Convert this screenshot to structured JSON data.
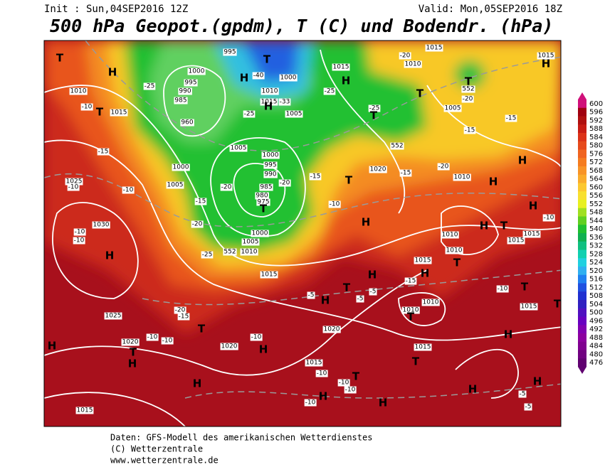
{
  "header": {
    "init": "Init : Sun,04SEP2016 12Z",
    "valid": "Valid: Mon,05SEP2016 18Z",
    "title": "500 hPa Geopot.(gpdm), T (C) und Bodendr. (hPa)"
  },
  "footer": {
    "line1": "Daten: GFS-Modell des amerikanischen Wetterdienstes",
    "line2": "(C) Wetterzentrale",
    "line3": "www.wetterzentrale.de"
  },
  "colorbar": {
    "levels": [
      600,
      596,
      592,
      588,
      584,
      580,
      576,
      572,
      568,
      564,
      560,
      556,
      552,
      548,
      544,
      540,
      536,
      532,
      528,
      524,
      520,
      516,
      512,
      508,
      504,
      500,
      496,
      492,
      488,
      484,
      480,
      476
    ],
    "colors": [
      "#d0107a",
      "#a00010",
      "#b01010",
      "#c81c14",
      "#dc3218",
      "#e64a1c",
      "#f06420",
      "#f57c20",
      "#f89428",
      "#faac2c",
      "#fcc830",
      "#f8e030",
      "#e8f020",
      "#a0e020",
      "#60d020",
      "#20c030",
      "#10b050",
      "#10c080",
      "#10d0b0",
      "#20d0e0",
      "#30b0f0",
      "#2080f0",
      "#2050e0",
      "#2030d0",
      "#3020c0",
      "#5010c0",
      "#6800c0",
      "#8000b0",
      "#8c00a0",
      "#800090",
      "#700080",
      "#600070"
    ]
  },
  "map": {
    "labels": [
      "T",
      "H",
      "1010",
      "-10",
      "T",
      "1015",
      "-25",
      "1000",
      "995",
      "990",
      "985",
      "960",
      "995",
      "T",
      "-40",
      "H",
      "1000",
      "1010",
      "1015",
      "-33",
      "H",
      "-25",
      "1005",
      "1015",
      "H",
      "-25",
      "-25",
      "T",
      "-20",
      "1015",
      "1010",
      "T",
      "552",
      "T",
      "-20",
      "1005",
      "-15",
      "-15",
      "1015",
      "H",
      "-15",
      "1005",
      "1000",
      "995",
      "990",
      "985",
      "980",
      "975",
      "T",
      "-20",
      "-20",
      "1000",
      "1005",
      "1025",
      "-10",
      "-10",
      "1030",
      "-10",
      "-10",
      "H",
      "-15",
      "-20",
      "-25",
      "552",
      "1010",
      "1005",
      "1000",
      "1015",
      "-15",
      "T",
      "-10",
      "1020",
      "-15",
      "-20",
      "1010",
      "H",
      "H",
      "H",
      "H",
      "1010",
      "1010",
      "H",
      "T",
      "1015",
      "1015",
      "-10",
      "1015",
      "H",
      "T",
      "-15",
      "H",
      "T",
      "-5",
      "H",
      "-5",
      "-5",
      "1010",
      "1010",
      "T",
      "-10",
      "T",
      "1015",
      "T",
      "-20",
      "-15",
      "1025",
      "T",
      "-10",
      "-10",
      "1020",
      "T",
      "H",
      "H",
      "1020",
      "-10",
      "H",
      "1020",
      "1015",
      "H",
      "T",
      "1015",
      "-10",
      "T",
      "H",
      "-10",
      "-10",
      "H",
      "-10",
      "H",
      "H",
      "H",
      "-5",
      "-5",
      "1015",
      "552"
    ]
  }
}
